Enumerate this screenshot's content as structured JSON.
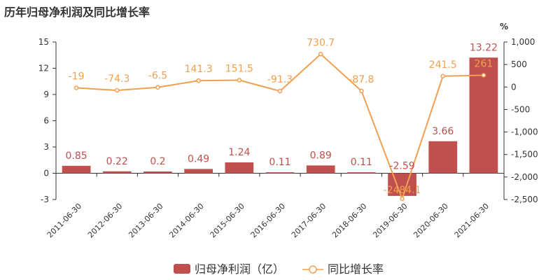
{
  "title": "历年归母净利润及同比增长率",
  "chart_data": {
    "type": "bar+line",
    "categories": [
      "2011-06-30",
      "2012-06-30",
      "2013-06-30",
      "2014-06-30",
      "2015-06-30",
      "2016-06-30",
      "2017-06-30",
      "2018-06-30",
      "2019-06-30",
      "2020-06-30",
      "2021-06-30"
    ],
    "series": [
      {
        "name": "归母净利润（亿）",
        "type": "bar",
        "axis": "left",
        "color": "#c0504d",
        "values": [
          0.85,
          0.22,
          0.2,
          0.49,
          1.24,
          0.11,
          0.89,
          0.11,
          -2.59,
          3.66,
          13.22
        ],
        "labels": [
          "0.85",
          "0.22",
          "0.2",
          "0.49",
          "1.24",
          "0.11",
          "0.89",
          "0.11",
          "-2.59",
          "3.66",
          "13.22"
        ]
      },
      {
        "name": "同比增长率",
        "type": "line",
        "axis": "right",
        "color": "#f0a050",
        "values": [
          -19,
          -74.3,
          -6.5,
          141.3,
          151.5,
          -91.3,
          730.7,
          -87.8,
          -2484.1,
          241.5,
          261
        ],
        "labels": [
          "-19",
          "-74.3",
          "-6.5",
          "141.3",
          "151.5",
          "-91.3",
          "730.7",
          "-87.8",
          "-2484.1",
          "241.5",
          "261"
        ]
      }
    ],
    "left_axis": {
      "ylim": [
        -3,
        15
      ],
      "ticks": [
        "-3",
        "0",
        "3",
        "6",
        "9",
        "12",
        "15"
      ],
      "tick_values": [
        -3,
        0,
        3,
        6,
        9,
        12,
        15
      ]
    },
    "right_axis": {
      "unit": "%",
      "ylim": [
        -2500,
        1000
      ],
      "ticks": [
        "-2,500",
        "-2,000",
        "-1,500",
        "-1,000",
        "-500",
        "0",
        "500",
        "1,000"
      ],
      "tick_values": [
        -2500,
        -2000,
        -1500,
        -1000,
        -500,
        0,
        500,
        1000
      ]
    },
    "grid": false,
    "legend": "bottom"
  }
}
